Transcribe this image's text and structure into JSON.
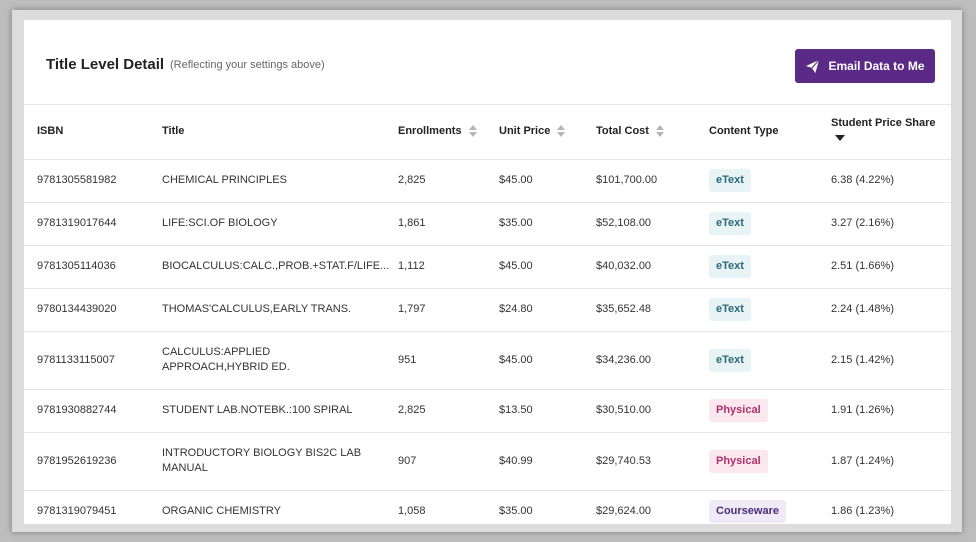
{
  "header": {
    "title": "Title Level Detail",
    "subtitle": "(Reflecting your settings above)",
    "email_button_label": "Email Data to Me"
  },
  "columns": {
    "isbn": "ISBN",
    "title": "Title",
    "enrollments": "Enrollments",
    "unit_price": "Unit Price",
    "total_cost": "Total Cost",
    "content_type": "Content Type",
    "student_price_share": "Student Price Share"
  },
  "rows": [
    {
      "isbn": "9781305581982",
      "title": "CHEMICAL PRINCIPLES",
      "enrollments": "2,825",
      "unit_price": "$45.00",
      "total_cost": "$101,700.00",
      "content_type": "eText",
      "share": "6.38 (4.22%)"
    },
    {
      "isbn": "9781319017644",
      "title": "LIFE:SCI.OF BIOLOGY",
      "enrollments": "1,861",
      "unit_price": "$35.00",
      "total_cost": "$52,108.00",
      "content_type": "eText",
      "share": "3.27 (2.16%)"
    },
    {
      "isbn": "9781305114036",
      "title": "BIOCALCULUS:CALC.,PROB.+STAT.F/LIFE...",
      "enrollments": "1,112",
      "unit_price": "$45.00",
      "total_cost": "$40,032.00",
      "content_type": "eText",
      "share": "2.51 (1.66%)"
    },
    {
      "isbn": "9780134439020",
      "title": "THOMAS'CALCULUS,EARLY TRANS.",
      "enrollments": "1,797",
      "unit_price": "$24.80",
      "total_cost": "$35,652.48",
      "content_type": "eText",
      "share": "2.24 (1.48%)"
    },
    {
      "isbn": "9781133115007",
      "title": "CALCULUS:APPLIED APPROACH,HYBRID ED.",
      "enrollments": "951",
      "unit_price": "$45.00",
      "total_cost": "$34,236.00",
      "content_type": "eText",
      "share": "2.15 (1.42%)"
    },
    {
      "isbn": "9781930882744",
      "title": "STUDENT LAB.NOTEBK.:100 SPIRAL",
      "enrollments": "2,825",
      "unit_price": "$13.50",
      "total_cost": "$30,510.00",
      "content_type": "Physical",
      "share": "1.91 (1.26%)"
    },
    {
      "isbn": "9781952619236",
      "title": "INTRODUCTORY BIOLOGY BIS2C LAB MANUAL",
      "enrollments": "907",
      "unit_price": "$40.99",
      "total_cost": "$29,740.53",
      "content_type": "Physical",
      "share": "1.87 (1.24%)"
    },
    {
      "isbn": "9781319079451",
      "title": "ORGANIC CHEMISTRY",
      "enrollments": "1,058",
      "unit_price": "$35.00",
      "total_cost": "$29,624.00",
      "content_type": "Courseware",
      "share": "1.86 (1.23%)"
    }
  ],
  "colors": {
    "accent": "#5b2a86",
    "etext_bg": "#e8f3f5",
    "physical_bg": "#fbe8ef",
    "courseware_bg": "#f0eaf8"
  }
}
